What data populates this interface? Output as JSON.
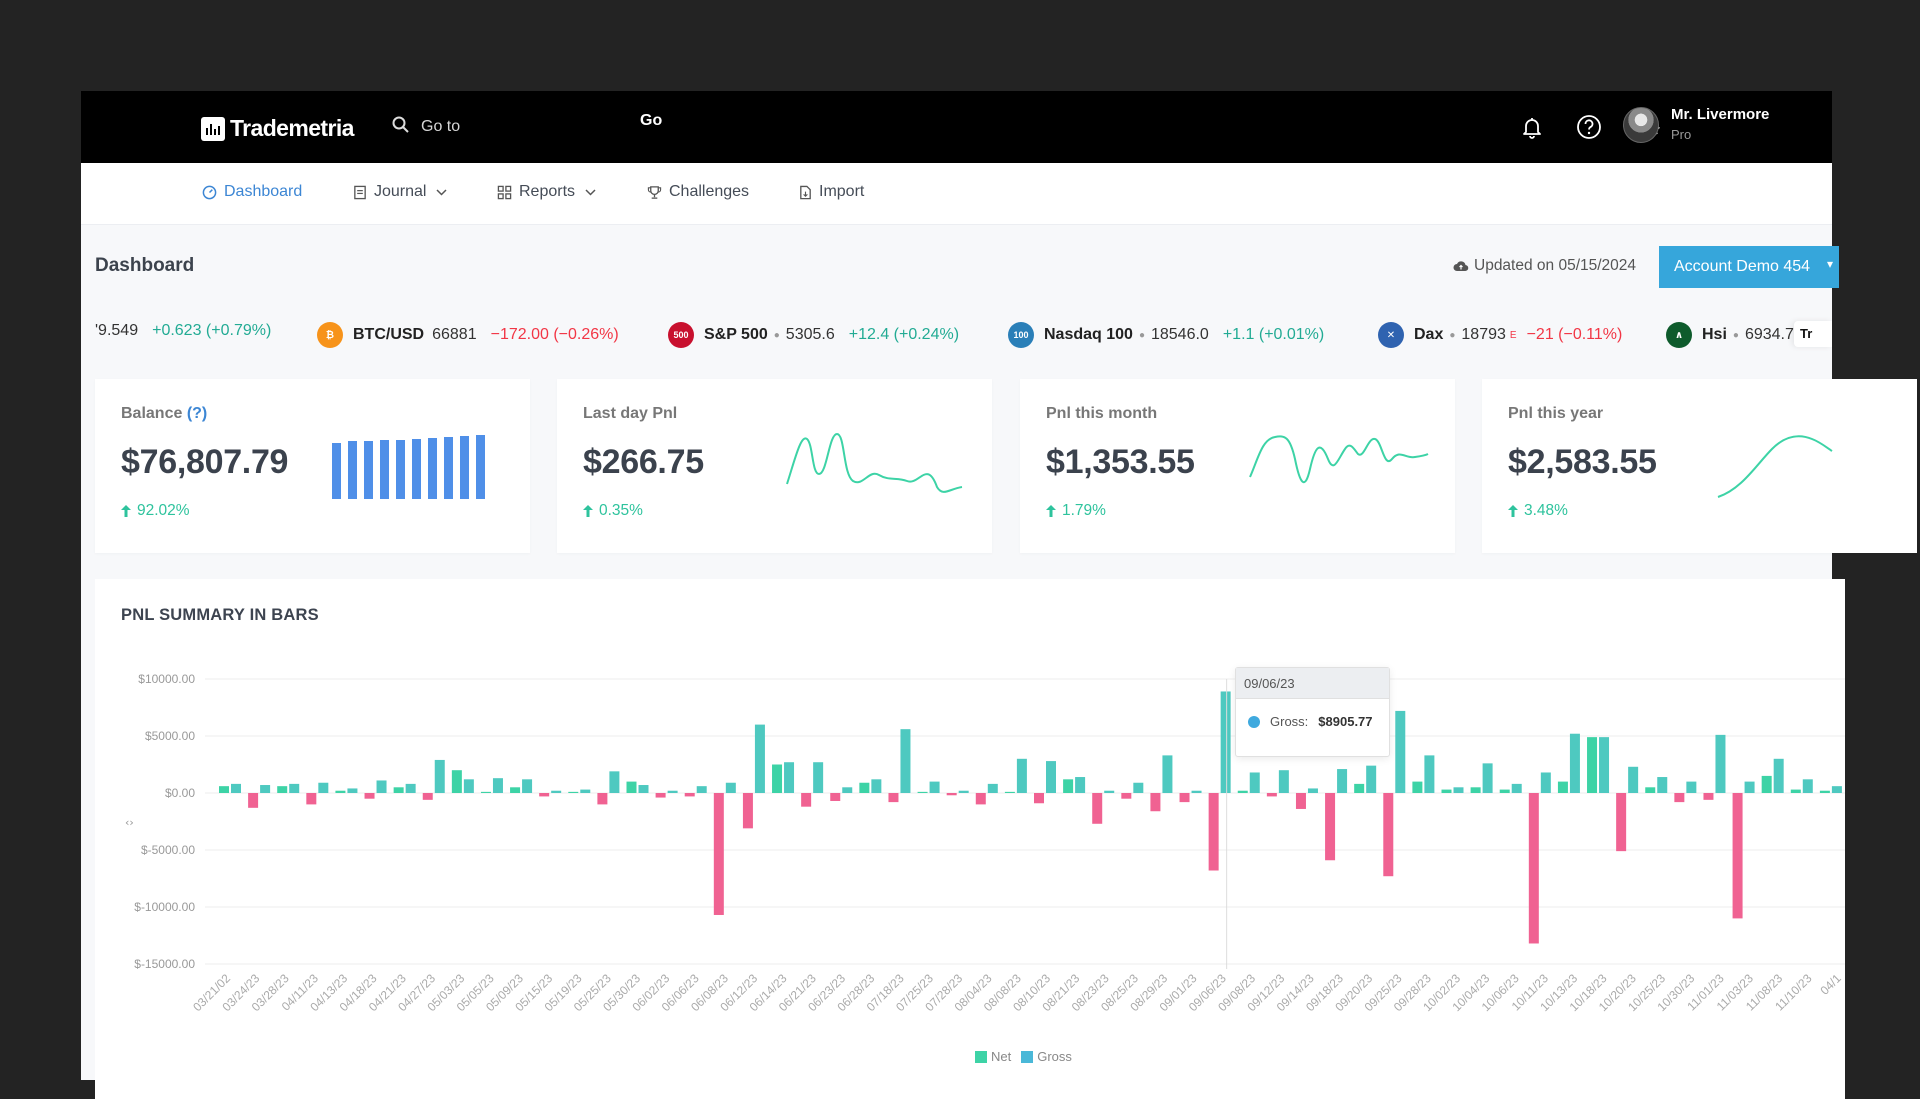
{
  "header": {
    "brand": "Trademetria",
    "search_placeholder": "Go to",
    "go_label": "Go",
    "user": {
      "name": "Mr. Livermore",
      "plan": "Pro"
    },
    "icons": [
      "bell-icon",
      "help-icon",
      "gear-icon"
    ]
  },
  "nav": {
    "dashboard": "Dashboard",
    "journal": "Journal",
    "reports": "Reports",
    "challenges": "Challenges",
    "import": "Import"
  },
  "page": {
    "title": "Dashboard",
    "updated": "Updated on 05/15/2024",
    "account": "Account Demo 454"
  },
  "ticker": {
    "partial": {
      "price": "'9.549",
      "change": "+0.623 (+0.79%)"
    },
    "items": [
      {
        "symbol": "BTC/USD",
        "price": "66881",
        "change": "−172.00 (−0.26%)",
        "icon_text": "₿",
        "color": "#f7931a"
      },
      {
        "symbol": "S&P 500",
        "price": "5305.6",
        "change": "+12.4 (+0.24%)",
        "icon_text": "500",
        "color": "#c8102e"
      },
      {
        "symbol": "Nasdaq 100",
        "price": "18546.0",
        "change": "+1.1 (+0.01%)",
        "icon_text": "100",
        "color": "#2a7fb8"
      },
      {
        "symbol": "Dax",
        "price": "18793",
        "price_sup": "E",
        "change": "−21 (−0.11%)",
        "icon_text": "✕",
        "color": "#2f63b0"
      },
      {
        "symbol": "Hsi",
        "price": "6934.7",
        "change": "",
        "icon_text": "∧",
        "color": "#0e5b2c"
      }
    ],
    "badge": "Tr"
  },
  "cards": {
    "balance": {
      "label": "Balance",
      "help": "(?)",
      "value": "$76,807.79",
      "change": "92.02%"
    },
    "day": {
      "label": "Last day Pnl",
      "value": "$266.75",
      "change": "0.35%"
    },
    "month": {
      "label": "Pnl this month",
      "value": "$1,353.55",
      "change": "1.79%"
    },
    "year": {
      "label": "Pnl this year",
      "value": "$2,583.55",
      "change": "3.48%"
    }
  },
  "colors": {
    "net": "#f06292",
    "gross": "#4ec9c0",
    "accent": "#36a6db",
    "up": "#2ec39d"
  },
  "pnl": {
    "title": "PNL SUMMARY IN BARS",
    "tooltip": {
      "date": "09/06/23",
      "label": "Gross:",
      "value": "$8905.77"
    },
    "legend": {
      "net": "Net",
      "gross": "Gross"
    }
  },
  "chart_data": {
    "type": "bar",
    "title": "PNL SUMMARY IN BARS",
    "ylim": [
      -15000,
      10000
    ],
    "yticks": [
      "$10000.00",
      "$5000.00",
      "$0.00",
      "$-5000.00",
      "$-10000.00",
      "$-15000.00"
    ],
    "ytick_values": [
      10000,
      5000,
      0,
      -5000,
      -10000,
      -15000
    ],
    "xlabels": [
      "03/21/02",
      "03/24/23",
      "03/28/23",
      "04/11/23",
      "04/13/23",
      "04/18/23",
      "04/21/23",
      "04/27/23",
      "05/03/23",
      "05/05/23",
      "05/09/23",
      "05/15/23",
      "05/19/23",
      "05/25/23",
      "05/30/23",
      "06/02/23",
      "06/06/23",
      "06/08/23",
      "06/12/23",
      "06/14/23",
      "06/21/23",
      "06/23/23",
      "06/28/23",
      "07/18/23",
      "07/25/23",
      "07/28/23",
      "08/04/23",
      "08/08/23",
      "08/10/23",
      "08/21/23",
      "08/23/23",
      "08/25/23",
      "08/29/23",
      "09/01/23",
      "09/06/23",
      "09/08/23",
      "09/12/23",
      "09/14/23",
      "09/18/23",
      "09/20/23",
      "09/25/23",
      "09/28/23",
      "10/02/23",
      "10/04/23",
      "10/06/23",
      "10/11/23",
      "10/13/23",
      "10/18/23",
      "10/20/23",
      "10/25/23",
      "10/30/23",
      "11/01/23",
      "11/03/23",
      "11/08/23",
      "11/10/23",
      "04/1"
    ],
    "series": [
      {
        "name": "Net",
        "values": [
          600,
          -1300,
          600,
          -1000,
          200,
          -500,
          500,
          -600,
          2000,
          100,
          500,
          -300,
          100,
          -1000,
          1000,
          -400,
          -300,
          -10700,
          -3100,
          2500,
          -1200,
          -700,
          900,
          -800,
          100,
          -200,
          -1000,
          100,
          -900,
          1200,
          -2700,
          -500,
          -1600,
          -800,
          -6800,
          200,
          -300,
          -1400,
          -5900,
          800,
          -7300,
          1000,
          300,
          500,
          300,
          -13200,
          1000,
          4900,
          -5100,
          500,
          -800,
          -600,
          -11000,
          1500,
          300,
          200
        ]
      },
      {
        "name": "Gross",
        "values": [
          800,
          700,
          800,
          900,
          400,
          1100,
          800,
          2900,
          1200,
          1300,
          1200,
          200,
          300,
          1900,
          700,
          200,
          600,
          900,
          6000,
          2700,
          2700,
          500,
          1200,
          5600,
          1000,
          200,
          800,
          3000,
          2800,
          1400,
          200,
          900,
          3300,
          200,
          8906,
          1800,
          2000,
          400,
          2100,
          2400,
          7200,
          3300,
          500,
          2600,
          800,
          1800,
          5200,
          4900,
          2300,
          1400,
          1000,
          5100,
          1000,
          3000,
          1200,
          600
        ]
      }
    ]
  }
}
